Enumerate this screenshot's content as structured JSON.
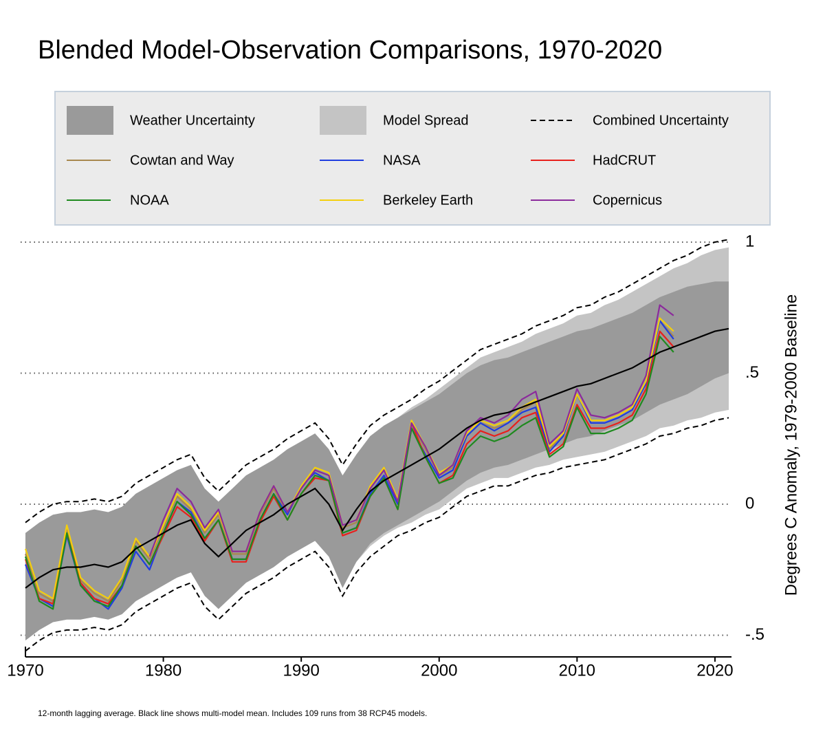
{
  "chart_data": {
    "type": "line",
    "title": "Blended Model-Observation Comparisons, 1970-2020",
    "y_label": "Degrees C Anomaly, 1979-2000 Baseline",
    "footnote": "12-month lagging average. Black line shows multi-model mean. Includes 109 runs from 38 RCP45 models.",
    "xlim": [
      1970,
      2021.2
    ],
    "ylim": [
      -0.58,
      1.02
    ],
    "xticks": [
      1970,
      1980,
      1990,
      2000,
      2010,
      2020
    ],
    "yticks": [
      1,
      {
        "value": 0.5,
        "label": ".5"
      },
      0,
      {
        "value": -0.5,
        "label": "-.5"
      }
    ],
    "grid": true,
    "x": [
      1970,
      1971,
      1972,
      1973,
      1974,
      1975,
      1976,
      1977,
      1978,
      1979,
      1980,
      1981,
      1982,
      1983,
      1984,
      1985,
      1986,
      1987,
      1988,
      1989,
      1990,
      1991,
      1992,
      1993,
      1994,
      1995,
      1996,
      1997,
      1998,
      1999,
      2000,
      2001,
      2002,
      2003,
      2004,
      2005,
      2006,
      2007,
      2008,
      2009,
      2010,
      2011,
      2012,
      2013,
      2014,
      2015,
      2016,
      2017,
      2018,
      2019,
      2020,
      2021
    ],
    "series": [
      {
        "name": "Weather Uncertainty",
        "kind": "band",
        "color": "#9a9a9a",
        "upper": [
          -0.11,
          -0.07,
          -0.04,
          -0.03,
          -0.03,
          -0.02,
          -0.03,
          -0.01,
          0.04,
          0.07,
          0.1,
          0.13,
          0.15,
          0.06,
          0.01,
          0.06,
          0.11,
          0.14,
          0.17,
          0.21,
          0.24,
          0.27,
          0.21,
          0.11,
          0.19,
          0.26,
          0.3,
          0.33,
          0.36,
          0.39,
          0.42,
          0.46,
          0.5,
          0.53,
          0.55,
          0.56,
          0.58,
          0.6,
          0.62,
          0.64,
          0.66,
          0.67,
          0.69,
          0.71,
          0.73,
          0.76,
          0.79,
          0.81,
          0.83,
          0.84,
          0.85,
          0.85
        ],
        "lower": [
          -0.52,
          -0.48,
          -0.45,
          -0.44,
          -0.44,
          -0.43,
          -0.44,
          -0.42,
          -0.37,
          -0.34,
          -0.31,
          -0.28,
          -0.26,
          -0.35,
          -0.4,
          -0.35,
          -0.3,
          -0.27,
          -0.24,
          -0.2,
          -0.17,
          -0.14,
          -0.2,
          -0.32,
          -0.22,
          -0.15,
          -0.11,
          -0.08,
          -0.05,
          -0.02,
          0.01,
          0.05,
          0.09,
          0.12,
          0.14,
          0.15,
          0.17,
          0.19,
          0.21,
          0.23,
          0.25,
          0.26,
          0.28,
          0.3,
          0.32,
          0.35,
          0.38,
          0.4,
          0.42,
          0.45,
          0.48,
          0.5
        ]
      },
      {
        "name": "Model Spread",
        "kind": "band",
        "color": "#c4c4c4",
        "upper": [
          -0.22,
          -0.18,
          -0.14,
          -0.13,
          -0.12,
          -0.11,
          -0.12,
          -0.09,
          -0.04,
          0.0,
          0.03,
          0.07,
          0.09,
          0.0,
          -0.04,
          0.01,
          0.07,
          0.1,
          0.14,
          0.18,
          0.21,
          0.25,
          0.19,
          0.1,
          0.18,
          0.26,
          0.3,
          0.33,
          0.37,
          0.4,
          0.44,
          0.48,
          0.52,
          0.56,
          0.58,
          0.6,
          0.62,
          0.65,
          0.67,
          0.69,
          0.72,
          0.73,
          0.76,
          0.78,
          0.81,
          0.84,
          0.87,
          0.9,
          0.92,
          0.95,
          0.97,
          0.98
        ],
        "lower": [
          -0.42,
          -0.38,
          -0.36,
          -0.35,
          -0.36,
          -0.35,
          -0.37,
          -0.35,
          -0.3,
          -0.28,
          -0.25,
          -0.23,
          -0.21,
          -0.31,
          -0.36,
          -0.31,
          -0.27,
          -0.24,
          -0.22,
          -0.18,
          -0.15,
          -0.13,
          -0.19,
          -0.3,
          -0.22,
          -0.16,
          -0.12,
          -0.09,
          -0.07,
          -0.04,
          -0.02,
          0.02,
          0.06,
          0.08,
          0.1,
          0.1,
          0.12,
          0.14,
          0.15,
          0.17,
          0.18,
          0.19,
          0.2,
          0.22,
          0.24,
          0.26,
          0.29,
          0.3,
          0.32,
          0.33,
          0.35,
          0.36
        ]
      },
      {
        "name": "Combined Uncertainty",
        "kind": "dashed",
        "color": "#000000",
        "upper": [
          -0.07,
          -0.03,
          0.0,
          0.01,
          0.01,
          0.02,
          0.01,
          0.03,
          0.08,
          0.11,
          0.14,
          0.17,
          0.19,
          0.1,
          0.05,
          0.1,
          0.15,
          0.18,
          0.21,
          0.25,
          0.28,
          0.31,
          0.25,
          0.15,
          0.23,
          0.3,
          0.34,
          0.37,
          0.4,
          0.44,
          0.47,
          0.51,
          0.55,
          0.59,
          0.61,
          0.63,
          0.65,
          0.68,
          0.7,
          0.72,
          0.75,
          0.76,
          0.79,
          0.81,
          0.84,
          0.87,
          0.9,
          0.93,
          0.95,
          0.98,
          1.0,
          1.01
        ],
        "lower": [
          -0.56,
          -0.52,
          -0.49,
          -0.48,
          -0.48,
          -0.47,
          -0.48,
          -0.46,
          -0.41,
          -0.38,
          -0.35,
          -0.32,
          -0.3,
          -0.39,
          -0.44,
          -0.39,
          -0.34,
          -0.31,
          -0.28,
          -0.24,
          -0.21,
          -0.18,
          -0.24,
          -0.35,
          -0.26,
          -0.2,
          -0.16,
          -0.12,
          -0.1,
          -0.07,
          -0.05,
          -0.01,
          0.03,
          0.05,
          0.07,
          0.07,
          0.09,
          0.11,
          0.12,
          0.14,
          0.15,
          0.16,
          0.17,
          0.19,
          0.21,
          0.23,
          0.26,
          0.27,
          0.29,
          0.3,
          0.32,
          0.33
        ]
      },
      {
        "name": "Cowtan and Way",
        "color": "#a8884e",
        "values": [
          -0.19,
          -0.34,
          -0.37,
          -0.09,
          -0.29,
          -0.34,
          -0.37,
          -0.29,
          -0.14,
          -0.21,
          -0.09,
          0.03,
          -0.02,
          -0.11,
          -0.04,
          -0.19,
          -0.19,
          -0.04,
          0.06,
          -0.04,
          0.06,
          0.13,
          0.11,
          -0.09,
          -0.07,
          0.06,
          0.13,
          0.01,
          0.31,
          0.21,
          0.11,
          0.14,
          0.26,
          0.31,
          0.29,
          0.31,
          0.36,
          0.39,
          0.21,
          0.27,
          0.42,
          0.32,
          0.32,
          0.34,
          0.37,
          0.47,
          0.7,
          0.64,
          null,
          null,
          null,
          null
        ]
      },
      {
        "name": "NASA",
        "color": "#1f3de0",
        "values": [
          -0.23,
          -0.36,
          -0.39,
          -0.12,
          -0.31,
          -0.36,
          -0.4,
          -0.32,
          -0.18,
          -0.25,
          -0.11,
          0.01,
          -0.03,
          -0.13,
          -0.06,
          -0.21,
          -0.21,
          -0.06,
          0.04,
          -0.04,
          0.07,
          0.12,
          0.09,
          -0.11,
          -0.09,
          0.04,
          0.11,
          0.0,
          0.29,
          0.19,
          0.1,
          0.13,
          0.26,
          0.31,
          0.28,
          0.31,
          0.35,
          0.37,
          0.2,
          0.26,
          0.42,
          0.31,
          0.31,
          0.33,
          0.36,
          0.46,
          0.7,
          0.63,
          null,
          null,
          null,
          null
        ]
      },
      {
        "name": "HadCRUT",
        "color": "#e8201c",
        "values": [
          -0.21,
          -0.36,
          -0.38,
          -0.11,
          -0.3,
          -0.36,
          -0.38,
          -0.31,
          -0.16,
          -0.23,
          -0.12,
          -0.01,
          -0.05,
          -0.14,
          -0.06,
          -0.22,
          -0.22,
          -0.07,
          0.03,
          -0.06,
          0.04,
          0.1,
          0.09,
          -0.12,
          -0.1,
          0.03,
          0.1,
          -0.02,
          0.31,
          0.18,
          0.08,
          0.11,
          0.23,
          0.28,
          0.26,
          0.28,
          0.33,
          0.35,
          0.19,
          0.23,
          0.38,
          0.29,
          0.29,
          0.31,
          0.34,
          0.44,
          0.66,
          0.6,
          null,
          null,
          null,
          null
        ]
      },
      {
        "name": "NOAA",
        "color": "#1e8a1e",
        "values": [
          -0.2,
          -0.37,
          -0.4,
          -0.11,
          -0.31,
          -0.37,
          -0.39,
          -0.31,
          -0.16,
          -0.23,
          -0.11,
          0.01,
          -0.04,
          -0.13,
          -0.06,
          -0.21,
          -0.21,
          -0.06,
          0.04,
          -0.06,
          0.04,
          0.11,
          0.09,
          -0.11,
          -0.09,
          0.03,
          0.1,
          -0.02,
          0.29,
          0.18,
          0.08,
          0.1,
          0.21,
          0.26,
          0.24,
          0.26,
          0.3,
          0.33,
          0.18,
          0.22,
          0.37,
          0.27,
          0.27,
          0.29,
          0.32,
          0.42,
          0.64,
          0.58,
          null,
          null,
          null,
          null
        ]
      },
      {
        "name": "Berkeley Earth",
        "color": "#f4cf0c",
        "values": [
          -0.17,
          -0.33,
          -0.36,
          -0.08,
          -0.28,
          -0.33,
          -0.36,
          -0.28,
          -0.13,
          -0.2,
          -0.08,
          0.04,
          -0.01,
          -0.1,
          -0.03,
          -0.18,
          -0.18,
          -0.03,
          0.07,
          -0.03,
          0.07,
          0.14,
          0.12,
          -0.08,
          -0.06,
          0.07,
          0.14,
          0.02,
          0.32,
          0.22,
          0.12,
          0.15,
          0.27,
          0.32,
          0.3,
          0.32,
          0.37,
          0.4,
          0.22,
          0.27,
          0.42,
          0.32,
          0.32,
          0.34,
          0.37,
          0.47,
          0.71,
          0.66,
          null,
          null,
          null,
          null
        ]
      },
      {
        "name": "Copernicus",
        "color": "#8b2a9c",
        "values": [
          null,
          null,
          null,
          null,
          null,
          null,
          null,
          null,
          null,
          -0.2,
          -0.06,
          0.06,
          0.01,
          -0.09,
          -0.02,
          -0.18,
          -0.18,
          -0.03,
          0.07,
          -0.03,
          0.06,
          0.13,
          0.11,
          -0.08,
          -0.06,
          0.06,
          0.13,
          0.01,
          0.31,
          0.22,
          0.11,
          0.15,
          0.28,
          0.33,
          0.31,
          0.34,
          0.4,
          0.43,
          0.23,
          0.28,
          0.44,
          0.34,
          0.33,
          0.35,
          0.38,
          0.49,
          0.76,
          0.72,
          null,
          null,
          null,
          null
        ]
      },
      {
        "color": "#000000",
        "values": [
          -0.32,
          -0.28,
          -0.25,
          -0.24,
          -0.24,
          -0.23,
          -0.24,
          -0.22,
          -0.17,
          -0.14,
          -0.11,
          -0.08,
          -0.06,
          -0.15,
          -0.2,
          -0.15,
          -0.1,
          -0.07,
          -0.04,
          0.0,
          0.03,
          0.06,
          0.0,
          -0.1,
          -0.02,
          0.05,
          0.09,
          0.12,
          0.15,
          0.18,
          0.21,
          0.25,
          0.29,
          0.32,
          0.34,
          0.35,
          0.37,
          0.39,
          0.41,
          0.43,
          0.45,
          0.46,
          0.48,
          0.5,
          0.52,
          0.55,
          0.58,
          0.6,
          0.62,
          0.64,
          0.66,
          0.67
        ]
      }
    ]
  }
}
